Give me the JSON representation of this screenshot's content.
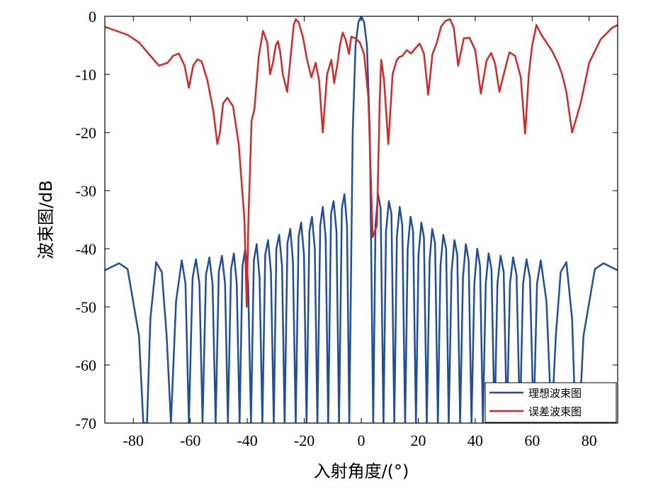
{
  "chart_data": {
    "type": "line",
    "xlabel": "入射角度/(°)",
    "ylabel": "波束图/dB",
    "xlim": [
      -90,
      90
    ],
    "ylim": [
      -70,
      0
    ],
    "xticks": [
      -80,
      -60,
      -40,
      -20,
      0,
      20,
      40,
      60,
      80
    ],
    "yticks": [
      0,
      -10,
      -20,
      -30,
      -40,
      -50,
      -60,
      -70
    ],
    "grid": false,
    "legend_position": "bottom-right",
    "series": [
      {
        "name": "理想波束图",
        "color": "#1f4e9c",
        "description_points": {
          "x": [
            -90,
            -85,
            -82,
            -78,
            -76.5,
            -75.2,
            -74,
            -72,
            -70,
            -68.3,
            -66.8,
            -65,
            -63,
            -61.7,
            -60.5,
            -59.2,
            -58,
            -56.8,
            -55.7,
            -54.5,
            -53.3,
            -52.2,
            -51.1,
            -50,
            -48.9,
            -47.8,
            -46.8,
            -45.7,
            -44.7,
            -43.7,
            -42.7,
            -41.7,
            -40.7,
            -39.7,
            -38.7,
            -37.7,
            -36.7,
            -35.7,
            -34.7,
            -33.7,
            -32.7,
            -31.7,
            -30.7,
            -29.8,
            -28.8,
            -27.8,
            -26.9,
            -25.9,
            -24.9,
            -24,
            -23,
            -22,
            -21.1,
            -20.1,
            -19.2,
            -18.2,
            -17.3,
            -16.3,
            -15.4,
            -14.4,
            -13.5,
            -12.5,
            -11.6,
            -10.6,
            -9.7,
            -8.7,
            -7.8,
            -6.8,
            -5.9,
            -5,
            -4.2,
            -3,
            -2,
            -1,
            0,
            1,
            2,
            3,
            4.2,
            5,
            5.9,
            6.8,
            7.8,
            8.7,
            9.7,
            10.6,
            11.6,
            12.5,
            13.5,
            14.4,
            15.4,
            16.3,
            17.3,
            18.2,
            19.2,
            20.1,
            21.1,
            22,
            23,
            24,
            24.9,
            25.9,
            26.9,
            27.8,
            28.8,
            29.8,
            30.7,
            31.7,
            32.7,
            33.7,
            34.7,
            35.7,
            36.7,
            37.7,
            38.7,
            39.7,
            40.7,
            41.7,
            42.7,
            43.7,
            44.7,
            45.7,
            46.8,
            47.8,
            48.9,
            50,
            51.1,
            52.2,
            53.3,
            54.5,
            55.7,
            56.8,
            58,
            59.2,
            60.5,
            61.7,
            63,
            65,
            66.8,
            68.3,
            70,
            72,
            74,
            75.2,
            76.5,
            78,
            82,
            85,
            90
          ],
          "y": [
            -43.7,
            -42.5,
            -43.5,
            -55,
            -70,
            -70,
            -52,
            -42.3,
            -44,
            -55,
            -70,
            -49,
            -42,
            -46,
            -70,
            -45,
            -41.8,
            -46,
            -70,
            -44.5,
            -41.5,
            -46,
            -70,
            -44,
            -41.2,
            -46,
            -70,
            -43.5,
            -40.8,
            -46,
            -70,
            -43,
            -40,
            -46,
            -70,
            -42,
            -39.2,
            -45,
            -70,
            -41,
            -38.5,
            -44,
            -70,
            -40,
            -37.6,
            -43,
            -70,
            -39,
            -36.6,
            -42,
            -70,
            -38,
            -35.5,
            -41,
            -70,
            -37,
            -34.5,
            -40,
            -70,
            -36,
            -32.8,
            -38,
            -70,
            -34,
            -31.8,
            -37,
            -70,
            -33,
            -30.6,
            -36,
            -70,
            -20,
            -5,
            -1,
            0,
            -1,
            -5,
            -20,
            -70,
            -36,
            -30.6,
            -33,
            -70,
            -37,
            -31.8,
            -34,
            -70,
            -38,
            -32.8,
            -36,
            -70,
            -40,
            -34.5,
            -37,
            -70,
            -41,
            -35.5,
            -38,
            -70,
            -42,
            -36.6,
            -39,
            -70,
            -43,
            -37.6,
            -40,
            -70,
            -44,
            -38.5,
            -41,
            -70,
            -45,
            -39.2,
            -42,
            -70,
            -46,
            -40,
            -43,
            -70,
            -46,
            -40.8,
            -43.5,
            -70,
            -46,
            -41.2,
            -44,
            -70,
            -46,
            -41.5,
            -44.5,
            -70,
            -46,
            -41.8,
            -45,
            -70,
            -46,
            -42,
            -49,
            -70,
            -55,
            -44,
            -42.3,
            -52,
            -70,
            -70,
            -55,
            -43.5,
            -42.5,
            -43.7
          ]
        }
      },
      {
        "name": "误差波束图",
        "color": "#d62728",
        "description_points": {
          "x": [
            -90,
            -86,
            -82,
            -78,
            -74,
            -71,
            -68,
            -66,
            -64,
            -62,
            -60.5,
            -59,
            -57.5,
            -56,
            -54,
            -52,
            -50.5,
            -49.6,
            -48.5,
            -47,
            -45,
            -43,
            -41,
            -40.2,
            -39.6,
            -38.5,
            -37.5,
            -36,
            -34.5,
            -33,
            -32,
            -31,
            -30,
            -29.2,
            -28.5,
            -27.5,
            -26,
            -25,
            -23.7,
            -23,
            -22,
            -20.5,
            -19,
            -17.5,
            -16,
            -14.8,
            -13.5,
            -12,
            -10.5,
            -9.5,
            -8.3,
            -7.5,
            -6.5,
            -5.5,
            -4.3,
            -3.5,
            -2,
            -0.5,
            1,
            2.5,
            4,
            5.5,
            6.5,
            7,
            8,
            9.5,
            11,
            12.5,
            13.4,
            14.5,
            16,
            17.5,
            19,
            20.5,
            22,
            23.5,
            25,
            26.5,
            28,
            29.5,
            31.2,
            32.5,
            34,
            36,
            38,
            40,
            42,
            44,
            45.6,
            47,
            48.5,
            50,
            52,
            54,
            56,
            57.5,
            58.8,
            60,
            61.5,
            63,
            65,
            67,
            69,
            70.5,
            72,
            74,
            77,
            80,
            84,
            88,
            90
          ],
          "y": [
            -1.8,
            -2.5,
            -3.2,
            -4.5,
            -6.8,
            -8.5,
            -8,
            -6.8,
            -6.4,
            -8.5,
            -12.3,
            -8.5,
            -7.4,
            -7.8,
            -11,
            -16,
            -22,
            -20,
            -15,
            -14,
            -15.5,
            -22,
            -35,
            -50,
            -35,
            -18,
            -16,
            -7,
            -2.5,
            -4.5,
            -10,
            -8,
            -5,
            -4.3,
            -6,
            -10,
            -13,
            -8,
            -1.5,
            -0.5,
            -1,
            -3.5,
            -7.5,
            -10.5,
            -8,
            -11,
            -20,
            -10,
            -7.5,
            -11.5,
            -8,
            -5,
            -2.8,
            -4,
            -6.5,
            -3.5,
            -3.8,
            -4.5,
            -6.5,
            -14,
            -38,
            -36,
            -14.2,
            -7.5,
            -11,
            -22,
            -10,
            -7.5,
            -7,
            -6.8,
            -5.8,
            -6.4,
            -5.5,
            -4.7,
            -6.4,
            -13.5,
            -6.5,
            -4.6,
            -1.8,
            -0.8,
            -0.5,
            -2,
            -8.5,
            -3.8,
            -3.7,
            -5.8,
            -13.3,
            -7.6,
            -6.3,
            -8.2,
            -13,
            -10,
            -6.2,
            -6.8,
            -10.5,
            -20.2,
            -10,
            -5,
            -1.5,
            -3,
            -4.5,
            -6,
            -8,
            -10,
            -13,
            -20,
            -15,
            -8,
            -4,
            -2,
            -1.5
          ]
        }
      }
    ]
  }
}
